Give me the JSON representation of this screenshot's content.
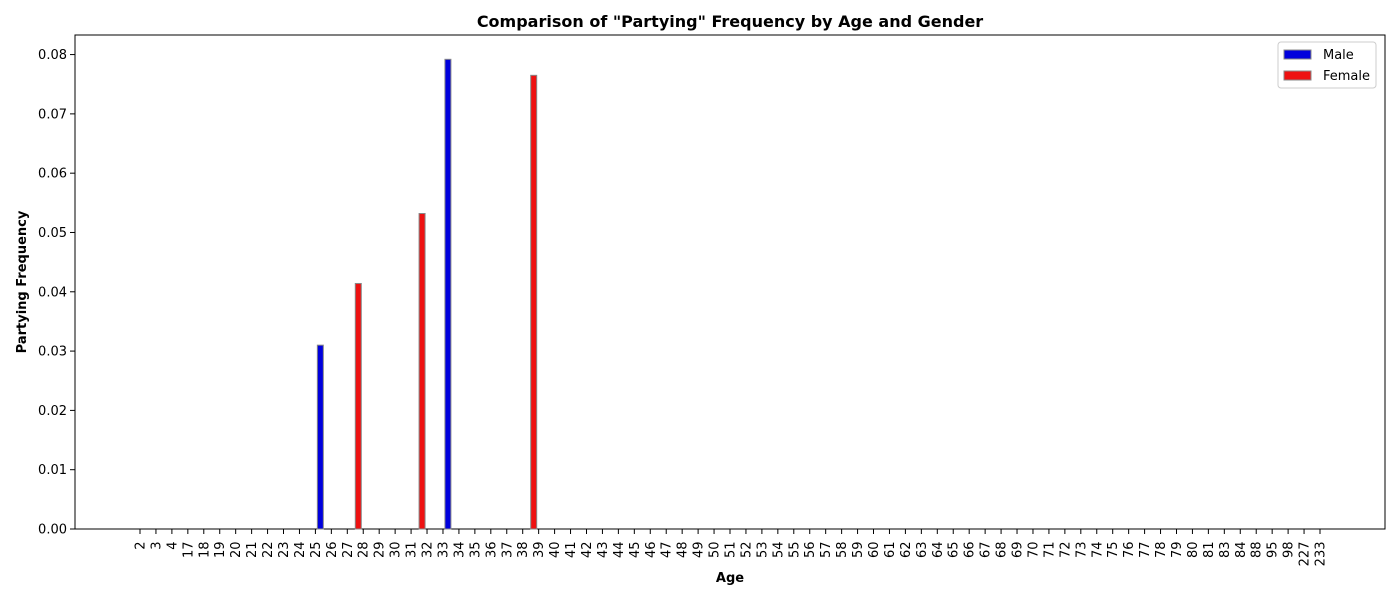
{
  "chart_data": {
    "type": "bar",
    "title": "Comparison of \"Partying\" Frequency by Age and Gender",
    "xlabel": "Age",
    "ylabel": "Partying Frequency",
    "ylim": [
      0,
      0.0833
    ],
    "yticks": [
      "0.00",
      "0.01",
      "0.02",
      "0.03",
      "0.04",
      "0.05",
      "0.06",
      "0.07",
      "0.08"
    ],
    "grid": false,
    "legend_position": "top-right",
    "categories": [
      "2",
      "3",
      "4",
      "17",
      "18",
      "19",
      "20",
      "21",
      "22",
      "23",
      "24",
      "25",
      "26",
      "27",
      "28",
      "29",
      "30",
      "31",
      "32",
      "33",
      "34",
      "35",
      "36",
      "37",
      "38",
      "39",
      "40",
      "41",
      "42",
      "43",
      "44",
      "45",
      "46",
      "47",
      "48",
      "49",
      "50",
      "51",
      "52",
      "53",
      "54",
      "55",
      "56",
      "57",
      "58",
      "59",
      "60",
      "61",
      "62",
      "63",
      "64",
      "65",
      "66",
      "67",
      "68",
      "69",
      "70",
      "71",
      "72",
      "73",
      "74",
      "75",
      "76",
      "77",
      "78",
      "79",
      "80",
      "81",
      "83",
      "84",
      "88",
      "95",
      "98",
      "227",
      "233"
    ],
    "series": [
      {
        "name": "Male",
        "color": "#0000dd",
        "values": [
          0,
          0,
          0,
          0,
          0,
          0,
          0,
          0,
          0,
          0,
          0,
          0,
          0.031,
          0,
          0,
          0,
          0,
          0,
          0,
          0,
          0.0792,
          0,
          0,
          0,
          0,
          0,
          0,
          0,
          0,
          0,
          0,
          0,
          0,
          0,
          0,
          0,
          0,
          0,
          0,
          0,
          0,
          0,
          0,
          0,
          0,
          0,
          0,
          0,
          0,
          0,
          0,
          0,
          0,
          0,
          0,
          0,
          0,
          0,
          0,
          0,
          0,
          0,
          0,
          0,
          0,
          0,
          0,
          0,
          0,
          0,
          0,
          0,
          0,
          0,
          0
        ]
      },
      {
        "name": "Female",
        "color": "#ee1111",
        "values": [
          0,
          0,
          0,
          0,
          0,
          0,
          0,
          0,
          0,
          0,
          0,
          0,
          0,
          0.0414,
          0,
          0,
          0,
          0.0532,
          0,
          0,
          0,
          0,
          0,
          0,
          0.0765,
          0,
          0,
          0,
          0,
          0,
          0,
          0,
          0,
          0,
          0,
          0,
          0,
          0,
          0,
          0,
          0,
          0,
          0,
          0,
          0,
          0,
          0,
          0,
          0,
          0,
          0,
          0,
          0,
          0,
          0,
          0,
          0,
          0,
          0,
          0,
          0,
          0,
          0,
          0,
          0,
          0,
          0,
          0,
          0,
          0,
          0,
          0,
          0,
          0,
          0
        ]
      }
    ]
  }
}
